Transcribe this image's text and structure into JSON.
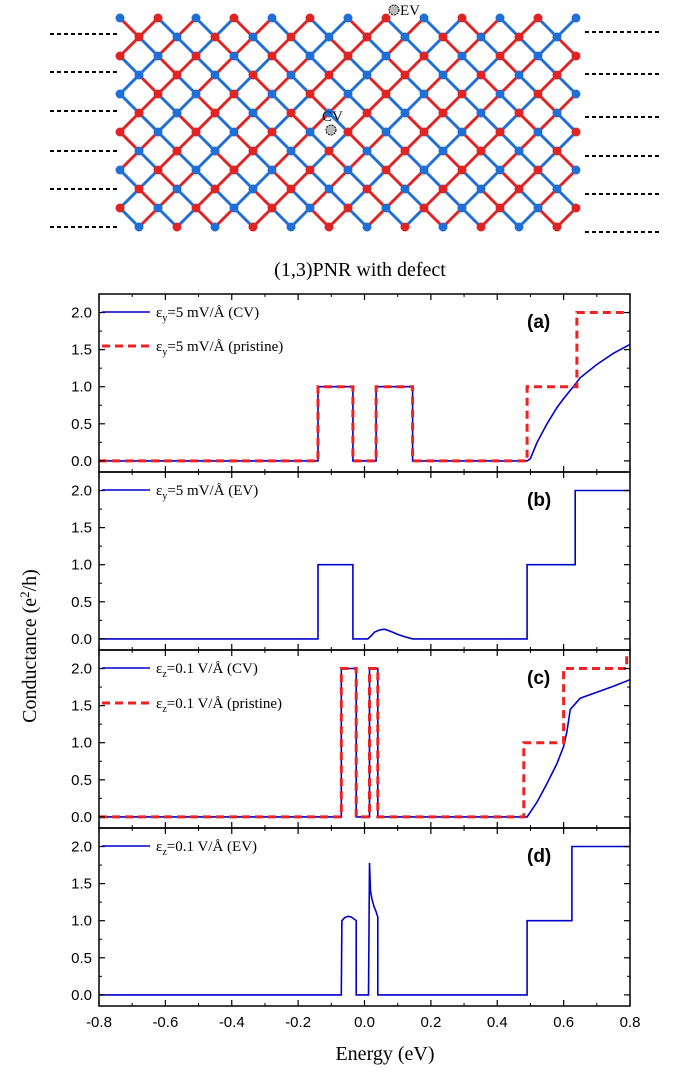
{
  "structure": {
    "caption": "(1,3)PNR with defect",
    "defect_labels": [
      "EV",
      "CV"
    ],
    "colors": {
      "sublattice_a": "#1f6fd6",
      "sublattice_b": "#e02424",
      "lead": "#000000"
    }
  },
  "axes": {
    "xlabel": "Energy (eV)",
    "ylabel_main": "Conductance (e",
    "ylabel_sup": "2",
    "ylabel_tail": "/h)",
    "xticks": [
      "-0.8",
      "-0.6",
      "-0.4",
      "-0.2",
      "0.0",
      "0.2",
      "0.4",
      "0.6",
      "0.8"
    ],
    "yticks": [
      "0.0",
      "0.5",
      "1.0",
      "1.5",
      "2.0"
    ]
  },
  "chart_data": [
    {
      "type": "line",
      "panel": "(a)",
      "xlim": [
        -0.8,
        0.8
      ],
      "ylim": [
        -0.15,
        2.25
      ],
      "series": [
        {
          "name": "εy=5 mV/Å (CV)",
          "legend_main": "ε",
          "legend_sub": "y",
          "legend_rest": "=5 mV/Å (CV)",
          "color": "#0000cc",
          "dash": "solid",
          "x": [
            -0.8,
            -0.14,
            -0.14,
            -0.035,
            -0.035,
            0.035,
            0.035,
            0.145,
            0.145,
            0.48,
            0.49,
            0.5,
            0.52,
            0.55,
            0.58,
            0.6,
            0.62,
            0.65,
            0.7,
            0.75,
            0.8
          ],
          "y": [
            0,
            0,
            1,
            1,
            0,
            0,
            1,
            1,
            0,
            0,
            0,
            0.03,
            0.25,
            0.5,
            0.72,
            0.84,
            0.95,
            1.12,
            1.3,
            1.45,
            1.57
          ]
        },
        {
          "name": "εy=5 mV/Å (pristine)",
          "legend_main": "ε",
          "legend_sub": "y",
          "legend_rest": "=5 mV/Å (pristine)",
          "color": "#ee2222",
          "dash": "dashed",
          "x": [
            -0.8,
            -0.14,
            -0.14,
            -0.035,
            -0.035,
            0.035,
            0.035,
            0.145,
            0.145,
            0.49,
            0.49,
            0.64,
            0.64,
            0.8
          ],
          "y": [
            0,
            0,
            1,
            1,
            0,
            0,
            1,
            1,
            0,
            0,
            1,
            1,
            2,
            2
          ]
        }
      ]
    },
    {
      "type": "line",
      "panel": "(b)",
      "xlim": [
        -0.8,
        0.8
      ],
      "ylim": [
        -0.15,
        2.25
      ],
      "series": [
        {
          "name": "εy=5 mV/Å (EV)",
          "legend_main": "ε",
          "legend_sub": "y",
          "legend_rest": "=5 mV/Å (EV)",
          "color": "#0000cc",
          "dash": "solid",
          "x": [
            -0.8,
            -0.14,
            -0.14,
            -0.035,
            -0.035,
            0.01,
            0.02,
            0.03,
            0.045,
            0.06,
            0.08,
            0.1,
            0.12,
            0.145,
            0.49,
            0.49,
            0.635,
            0.635,
            0.8
          ],
          "y": [
            0,
            0,
            1,
            1,
            0,
            0,
            0.04,
            0.09,
            0.12,
            0.13,
            0.1,
            0.06,
            0.03,
            0,
            0,
            1,
            1,
            2,
            2
          ]
        }
      ]
    },
    {
      "type": "line",
      "panel": "(c)",
      "xlim": [
        -0.8,
        0.8
      ],
      "ylim": [
        -0.15,
        2.25
      ],
      "series": [
        {
          "name": "εz=0.1 V/Å (CV)",
          "legend_main": "ε",
          "legend_sub": "z",
          "legend_rest": "=0.1 V/Å (CV)",
          "color": "#0000cc",
          "dash": "solid",
          "x": [
            -0.8,
            -0.07,
            -0.07,
            -0.025,
            -0.025,
            0.015,
            0.015,
            0.04,
            0.04,
            0.48,
            0.49,
            0.52,
            0.55,
            0.58,
            0.6,
            0.61,
            0.62,
            0.65,
            0.7,
            0.75,
            0.8
          ],
          "y": [
            0,
            0,
            2,
            2,
            0,
            0,
            2,
            2,
            0,
            0,
            0,
            0.2,
            0.45,
            0.72,
            0.95,
            1.15,
            1.45,
            1.6,
            1.68,
            1.76,
            1.85
          ]
        },
        {
          "name": "εz=0.1 V/Å (pristine)",
          "legend_main": "ε",
          "legend_sub": "z",
          "legend_rest": "=0.1 V/Å (pristine)",
          "color": "#ee2222",
          "dash": "dashed",
          "x": [
            -0.8,
            -0.07,
            -0.07,
            -0.025,
            -0.025,
            0.015,
            0.015,
            0.04,
            0.04,
            0.48,
            0.48,
            0.6,
            0.6,
            0.79,
            0.79,
            0.8
          ],
          "y": [
            0,
            0,
            2,
            2,
            0,
            0,
            2,
            2,
            0,
            0,
            1,
            1,
            2,
            2,
            2.18,
            2.18
          ]
        }
      ]
    },
    {
      "type": "line",
      "panel": "(d)",
      "xlim": [
        -0.8,
        0.8
      ],
      "ylim": [
        -0.15,
        2.25
      ],
      "series": [
        {
          "name": "εz=0.1 V/Å (EV)",
          "legend_main": "ε",
          "legend_sub": "z",
          "legend_rest": "=0.1 V/Å (EV)",
          "color": "#0000cc",
          "dash": "solid",
          "x": [
            -0.8,
            -0.07,
            -0.068,
            -0.06,
            -0.05,
            -0.04,
            -0.03,
            -0.025,
            -0.025,
            0.012,
            0.015,
            0.018,
            0.022,
            0.028,
            0.035,
            0.04,
            0.04,
            0.49,
            0.49,
            0.625,
            0.625,
            0.8
          ],
          "y": [
            0,
            0,
            1.0,
            1.04,
            1.06,
            1.05,
            1.02,
            1.0,
            0,
            0,
            1.78,
            1.4,
            1.3,
            1.2,
            1.12,
            1.05,
            0,
            0,
            1,
            1,
            2,
            2
          ]
        }
      ]
    }
  ]
}
